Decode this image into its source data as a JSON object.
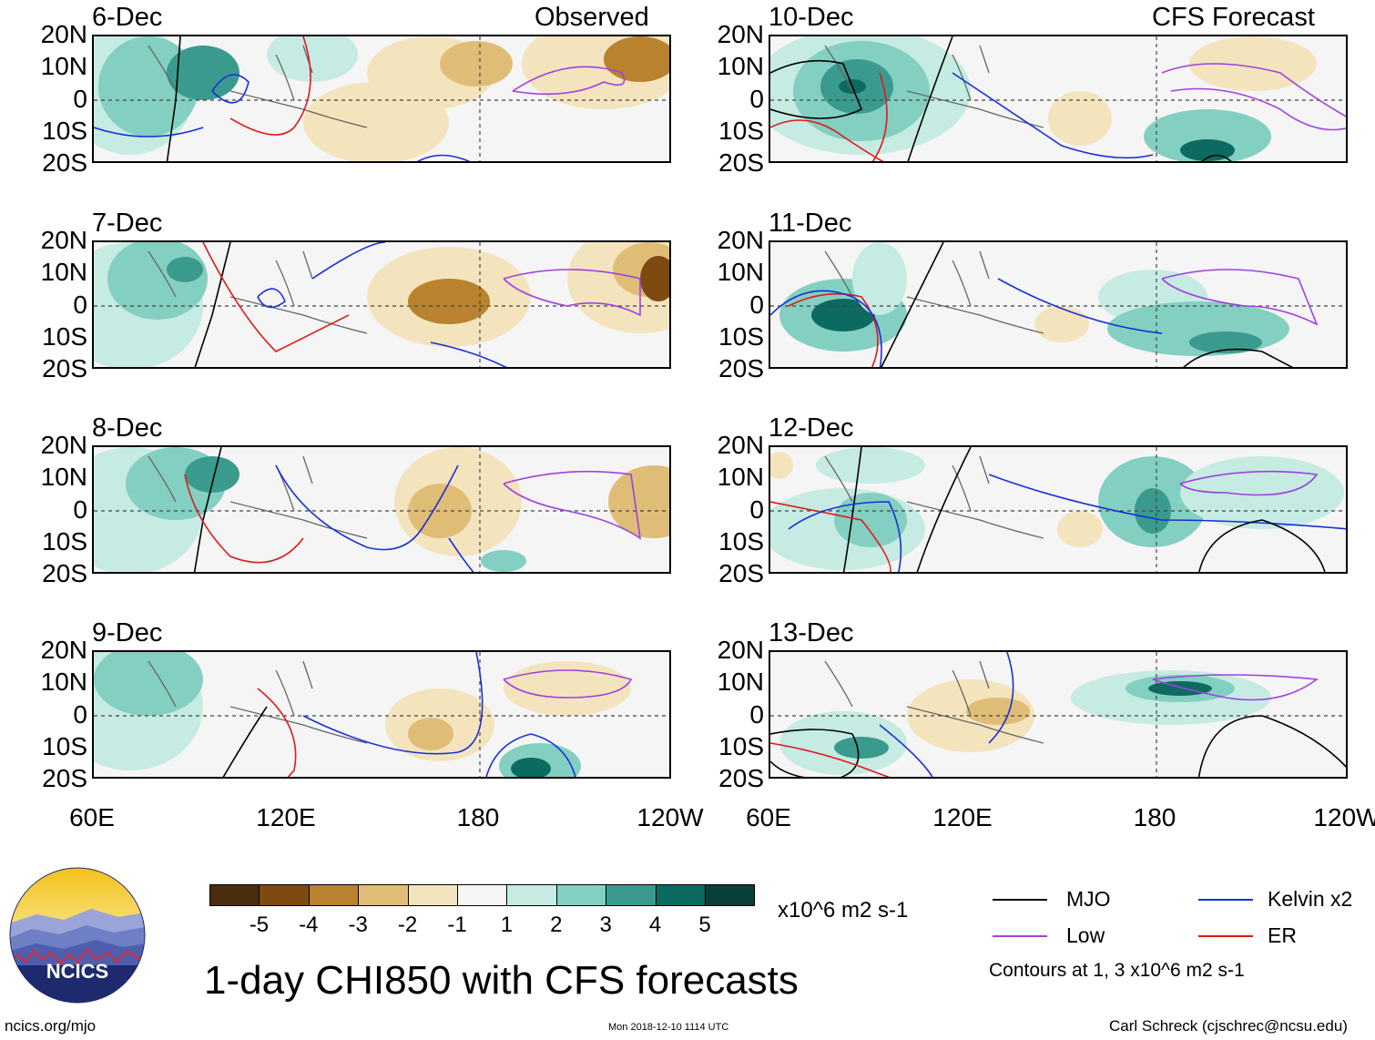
{
  "header": {
    "left_label": "Observed",
    "right_label": "CFS Forecast"
  },
  "panels": [
    {
      "date": "6-Dec",
      "column": "observed"
    },
    {
      "date": "7-Dec",
      "column": "observed"
    },
    {
      "date": "8-Dec",
      "column": "observed"
    },
    {
      "date": "9-Dec",
      "column": "observed"
    },
    {
      "date": "10-Dec",
      "column": "forecast"
    },
    {
      "date": "11-Dec",
      "column": "forecast"
    },
    {
      "date": "12-Dec",
      "column": "forecast"
    },
    {
      "date": "13-Dec",
      "column": "forecast"
    }
  ],
  "axes": {
    "y_ticks": [
      "20N",
      "10N",
      "0",
      "10S",
      "20S"
    ],
    "x_ticks_left": [
      "60E",
      "120E",
      "180",
      "120W"
    ],
    "x_ticks_right": [
      "60E",
      "120E",
      "180",
      "120W"
    ]
  },
  "colorbar": {
    "labels": [
      "-5",
      "-4",
      "-3",
      "-2",
      "-1",
      "1",
      "2",
      "3",
      "4",
      "5"
    ],
    "colors": [
      "#4a2d0e",
      "#7d4a12",
      "#b9822f",
      "#e0bd76",
      "#f4e4bd",
      "#f5f5f5",
      "#c5ebe2",
      "#83cfc1",
      "#3b9a8e",
      "#0c6a60",
      "#0a3f3a"
    ],
    "units": "x10^6 m2 s-1"
  },
  "legend": {
    "items": [
      {
        "label": "MJO",
        "color": "#000000"
      },
      {
        "label": "Kelvin x2",
        "color": "#1a2fd8"
      },
      {
        "label": "Low",
        "color": "#a040e0"
      },
      {
        "label": "ER",
        "color": "#e01818"
      }
    ],
    "note": "Contours at 1, 3 x10^6 m2 s-1"
  },
  "title": "1-day CHI850 with CFS forecasts",
  "footer": {
    "url": "ncics.org/mjo",
    "timestamp": "Mon 2018-12-10 1114 UTC",
    "credit": "Carl Schreck (cjschrec@ncsu.edu)"
  },
  "logo": {
    "text": "NCICS"
  },
  "chart_data": {
    "type": "heatmap",
    "title": "1-day CHI850 with CFS forecasts",
    "variable": "CHI850 (850-hPa velocity potential)",
    "units": "x10^6 m2 s-1",
    "x_axis": {
      "ticks": [
        "60E",
        "120E",
        "180",
        "120W"
      ],
      "range": [
        "60E",
        "120W"
      ]
    },
    "y_axis": {
      "ticks": [
        "20N",
        "10N",
        "0",
        "10S",
        "20S"
      ],
      "range": [
        "20S",
        "20N"
      ]
    },
    "color_levels": [
      -5,
      -4,
      -3,
      -2,
      -1,
      1,
      2,
      3,
      4,
      5
    ],
    "contour_levels": [
      1,
      3
    ],
    "contour_series": [
      "MJO",
      "Kelvin x2",
      "Low",
      "ER"
    ],
    "panels_observed": [
      "6-Dec",
      "7-Dec",
      "8-Dec",
      "9-Dec"
    ],
    "panels_forecast": [
      "10-Dec",
      "11-Dec",
      "12-Dec",
      "13-Dec"
    ]
  }
}
